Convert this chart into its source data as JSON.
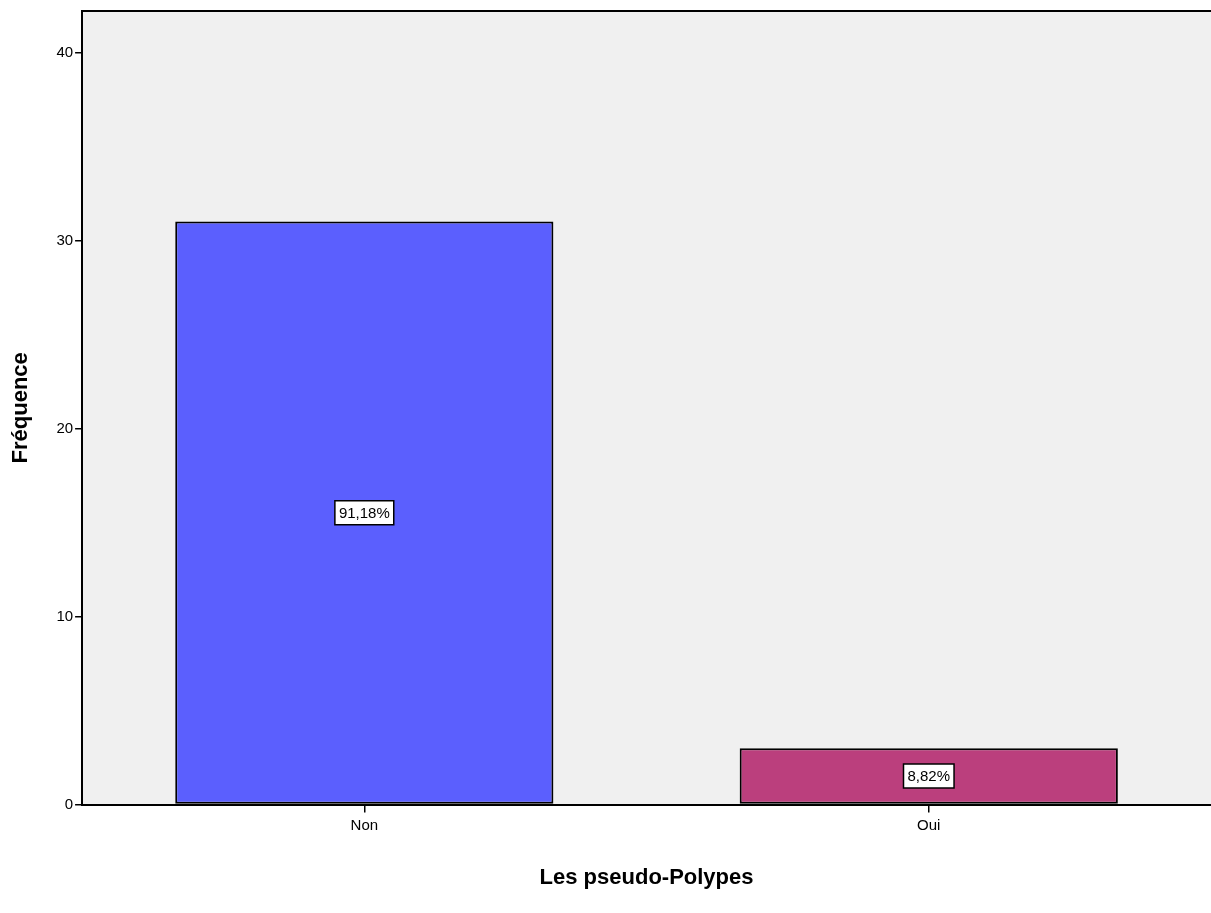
{
  "chart_data": {
    "type": "bar",
    "xlabel": "Les pseudo-Polypes",
    "ylabel": "Fréquence",
    "categories": [
      "Non",
      "Oui"
    ],
    "values": [
      31,
      3
    ],
    "colors": [
      "#5b5ffe",
      "#bb3f7d"
    ],
    "annotations": [
      "91,18%",
      "8,82%"
    ],
    "ylim": [
      0,
      42.2
    ],
    "yticks": [
      0,
      10,
      20,
      30,
      40
    ],
    "grid": false,
    "legend": false
  }
}
